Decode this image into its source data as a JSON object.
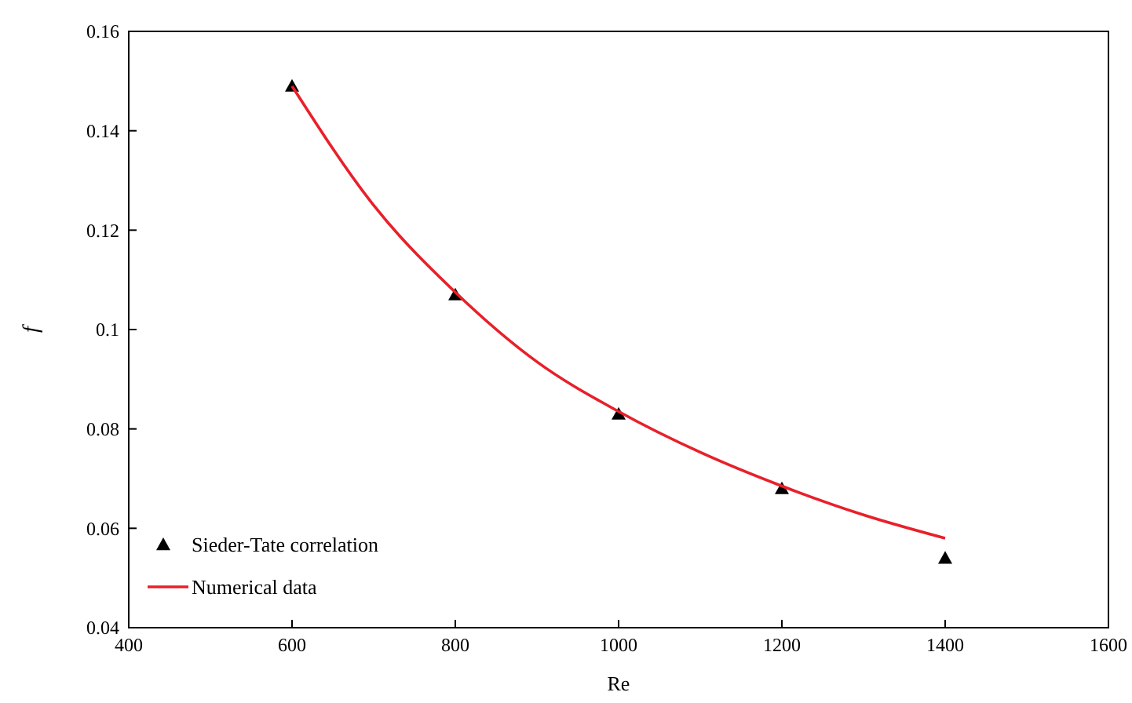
{
  "chart_data": {
    "type": "scatter",
    "xlabel": "Re",
    "ylabel": "f",
    "xlim": [
      400,
      1600
    ],
    "xticks": [
      400,
      600,
      800,
      1000,
      1200,
      1400,
      1600
    ],
    "ylim": [
      0.04,
      0.16
    ],
    "yticks": [
      0.04,
      0.06,
      0.08,
      {
        "value": 0.1,
        "label": "0.1"
      },
      0.12,
      0.14,
      0.16
    ],
    "legend": "bottom left",
    "grid": false,
    "series": [
      {
        "name": "Sieder-Tate correlation",
        "marker": "triangle",
        "color": "#000000",
        "x": [
          600,
          800,
          1000,
          1200,
          1400
        ],
        "values": [
          0.149,
          0.107,
          0.083,
          0.068,
          0.054
        ]
      },
      {
        "name": "Numerical data",
        "type": "line",
        "marker": "none",
        "line_style": "solid",
        "color": "#e8202a",
        "x": [
          600,
          700,
          800,
          900,
          1000,
          1100,
          1200,
          1300,
          1400
        ],
        "values": [
          0.149,
          0.125,
          0.1075,
          0.0935,
          0.0835,
          0.0753,
          0.0685,
          0.0627,
          0.058
        ]
      }
    ]
  }
}
